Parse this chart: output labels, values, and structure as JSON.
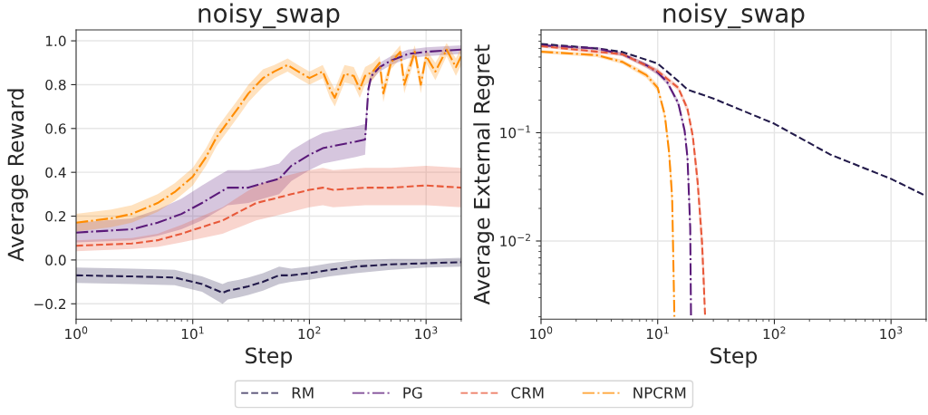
{
  "chart_data": [
    {
      "type": "line",
      "title": "noisy_swap",
      "xlabel": "Step",
      "ylabel": "Average Reward",
      "log": "x",
      "grid": true,
      "legend": "bottom",
      "xlim": [
        1,
        2000
      ],
      "xticks": [
        {
          "value": 1,
          "label": "10$^{0}$"
        },
        {
          "value": 10,
          "label": "10$^{1}$"
        },
        {
          "value": 100,
          "label": "10$^{2}$"
        },
        {
          "value": 1000,
          "label": "10$^{3}$"
        }
      ],
      "ylim": [
        -0.27,
        1.05
      ],
      "yticks": [
        {
          "value": -0.2,
          "label": "−0.2"
        },
        {
          "value": 0,
          "label": "0.0"
        },
        0.2,
        0.4,
        0.6,
        0.8,
        {
          "value": 1,
          "label": "1.0"
        }
      ],
      "series": [
        {
          "name": "RM",
          "color": "#231b4b",
          "line_style": "dashed",
          "x": [
            1,
            3,
            7,
            12,
            18,
            20,
            25,
            30,
            40,
            55,
            70,
            100,
            150,
            250,
            500,
            1000,
            2000
          ],
          "values": [
            -0.07,
            -0.075,
            -0.08,
            -0.11,
            -0.15,
            -0.14,
            -0.13,
            -0.12,
            -0.1,
            -0.07,
            -0.07,
            -0.06,
            -0.045,
            -0.03,
            -0.02,
            -0.015,
            -0.01
          ],
          "lower": [
            -0.105,
            -0.11,
            -0.115,
            -0.145,
            -0.2,
            -0.18,
            -0.17,
            -0.16,
            -0.14,
            -0.11,
            -0.1,
            -0.09,
            -0.075,
            -0.06,
            -0.045,
            -0.035,
            -0.03
          ],
          "upper": [
            -0.035,
            -0.04,
            -0.045,
            -0.075,
            -0.11,
            -0.1,
            -0.09,
            -0.08,
            -0.06,
            -0.03,
            -0.04,
            -0.03,
            -0.015,
            0.0,
            0.005,
            0.005,
            0.01
          ]
        },
        {
          "name": "PG",
          "color": "#5b1a7a",
          "line_style": "dashdot",
          "x": [
            1,
            3,
            5,
            8,
            12,
            16,
            20,
            30,
            40,
            55,
            70,
            100,
            130,
            200,
            250,
            300,
            320,
            340,
            400,
            500,
            700,
            1000,
            2000
          ],
          "values": [
            0.125,
            0.14,
            0.17,
            0.21,
            0.26,
            0.3,
            0.33,
            0.33,
            0.35,
            0.37,
            0.43,
            0.48,
            0.51,
            0.53,
            0.54,
            0.55,
            0.78,
            0.84,
            0.88,
            0.91,
            0.94,
            0.95,
            0.96
          ],
          "lower": [
            0.08,
            0.09,
            0.11,
            0.14,
            0.18,
            0.22,
            0.25,
            0.26,
            0.28,
            0.3,
            0.36,
            0.41,
            0.44,
            0.46,
            0.47,
            0.48,
            0.75,
            0.82,
            0.86,
            0.89,
            0.92,
            0.93,
            0.94
          ],
          "upper": [
            0.17,
            0.19,
            0.23,
            0.28,
            0.34,
            0.38,
            0.41,
            0.41,
            0.42,
            0.44,
            0.5,
            0.55,
            0.58,
            0.6,
            0.61,
            0.62,
            0.81,
            0.86,
            0.9,
            0.93,
            0.96,
            0.97,
            0.98
          ]
        },
        {
          "name": "CRM",
          "color": "#e8593a",
          "line_style": "dashed",
          "x": [
            1,
            3,
            5,
            8,
            12,
            18,
            25,
            35,
            50,
            70,
            100,
            130,
            160,
            300,
            500,
            1000,
            2000
          ],
          "values": [
            0.065,
            0.075,
            0.09,
            0.12,
            0.15,
            0.18,
            0.22,
            0.26,
            0.28,
            0.3,
            0.32,
            0.33,
            0.32,
            0.33,
            0.33,
            0.34,
            0.33
          ],
          "lower": [
            0.04,
            0.05,
            0.06,
            0.08,
            0.1,
            0.12,
            0.15,
            0.18,
            0.2,
            0.22,
            0.24,
            0.25,
            0.24,
            0.25,
            0.25,
            0.25,
            0.24
          ],
          "upper": [
            0.09,
            0.1,
            0.12,
            0.16,
            0.2,
            0.24,
            0.29,
            0.34,
            0.37,
            0.39,
            0.41,
            0.42,
            0.41,
            0.42,
            0.42,
            0.43,
            0.42
          ]
        },
        {
          "name": "NPCRM",
          "color": "#ff8c00",
          "line_style": "dashdot",
          "x": [
            1,
            2,
            3,
            5,
            7,
            10,
            13,
            16,
            20,
            25,
            30,
            40,
            50,
            65,
            80,
            100,
            130,
            150,
            165,
            200,
            240,
            270,
            300,
            350,
            400,
            430,
            500,
            600,
            650,
            800,
            900,
            1000,
            1200,
            1500,
            1800,
            2000
          ],
          "values": [
            0.17,
            0.19,
            0.21,
            0.26,
            0.31,
            0.38,
            0.47,
            0.56,
            0.63,
            0.7,
            0.76,
            0.83,
            0.86,
            0.89,
            0.86,
            0.83,
            0.86,
            0.78,
            0.74,
            0.85,
            0.84,
            0.78,
            0.84,
            0.86,
            0.9,
            0.76,
            0.9,
            0.95,
            0.8,
            0.95,
            0.8,
            0.93,
            0.86,
            0.96,
            0.88,
            0.93
          ],
          "lower": [
            0.13,
            0.15,
            0.17,
            0.22,
            0.27,
            0.34,
            0.43,
            0.52,
            0.59,
            0.66,
            0.72,
            0.79,
            0.83,
            0.86,
            0.83,
            0.8,
            0.83,
            0.74,
            0.7,
            0.81,
            0.8,
            0.74,
            0.8,
            0.82,
            0.87,
            0.72,
            0.87,
            0.92,
            0.76,
            0.92,
            0.76,
            0.9,
            0.82,
            0.93,
            0.84,
            0.89
          ],
          "upper": [
            0.21,
            0.23,
            0.25,
            0.3,
            0.35,
            0.42,
            0.51,
            0.6,
            0.67,
            0.74,
            0.8,
            0.87,
            0.89,
            0.92,
            0.89,
            0.86,
            0.89,
            0.82,
            0.78,
            0.89,
            0.88,
            0.82,
            0.88,
            0.9,
            0.93,
            0.8,
            0.93,
            0.98,
            0.84,
            0.98,
            0.84,
            0.96,
            0.9,
            0.99,
            0.92,
            0.97
          ]
        }
      ]
    },
    {
      "type": "line",
      "title": "noisy_swap",
      "xlabel": "Step",
      "ylabel": "Average External Regret",
      "log": "xy",
      "grid": true,
      "xlim": [
        1,
        2000
      ],
      "xticks": [
        {
          "value": 1,
          "label": "10$^{0}$"
        },
        {
          "value": 10,
          "label": "10$^{1}$"
        },
        {
          "value": 100,
          "label": "10$^{2}$"
        },
        {
          "value": 1000,
          "label": "10$^{3}$"
        }
      ],
      "ylim": [
        0.0019,
        0.89
      ],
      "yticks": [
        {
          "value": 0.01,
          "label": "10$^{−2}$"
        },
        {
          "value": 0.1,
          "label": "10$^{−1}$"
        }
      ],
      "series": [
        {
          "color": "#231b4b",
          "line_style": "dashed",
          "x": [
            1,
            3,
            5,
            10,
            15,
            18,
            30,
            100,
            300,
            1000,
            2000
          ],
          "values": [
            0.66,
            0.6,
            0.556,
            0.435,
            0.3,
            0.25,
            0.207,
            0.121,
            0.063,
            0.0375,
            0.026
          ]
        },
        {
          "color": "#5b1a7a",
          "line_style": "dashdot",
          "x": [
            1,
            3,
            5,
            8,
            10,
            12,
            15,
            17,
            18,
            19,
            19.3
          ],
          "values": [
            0.64,
            0.6,
            0.53,
            0.42,
            0.36,
            0.296,
            0.188,
            0.105,
            0.059,
            0.0134,
            0.002
          ],
          "lower": [
            0.62,
            0.58,
            0.51,
            0.4,
            0.34,
            0.28,
            0.175,
            0.095,
            0.05,
            0.009,
            0.0019
          ],
          "upper": [
            0.66,
            0.62,
            0.55,
            0.44,
            0.38,
            0.31,
            0.2,
            0.115,
            0.07,
            0.02,
            0.004
          ]
        },
        {
          "color": "#e8593a",
          "line_style": "dashed",
          "x": [
            1,
            5,
            10,
            15,
            18,
            20,
            22,
            24,
            25.5
          ],
          "values": [
            0.63,
            0.53,
            0.37,
            0.26,
            0.166,
            0.093,
            0.035,
            0.0097,
            0.002
          ],
          "lower": [
            0.61,
            0.51,
            0.35,
            0.245,
            0.15,
            0.08,
            0.027,
            0.006,
            0.0019
          ],
          "upper": [
            0.65,
            0.55,
            0.39,
            0.275,
            0.18,
            0.105,
            0.045,
            0.014,
            0.004
          ]
        },
        {
          "color": "#ff8c00",
          "line_style": "dashdot",
          "x": [
            1,
            3,
            5,
            8,
            10,
            11.5,
            12.5,
            13.3,
            13.9
          ],
          "values": [
            0.56,
            0.52,
            0.45,
            0.34,
            0.26,
            0.146,
            0.067,
            0.0255,
            0.002
          ],
          "lower": [
            0.54,
            0.5,
            0.43,
            0.32,
            0.24,
            0.13,
            0.055,
            0.018,
            0.0019
          ],
          "upper": [
            0.58,
            0.54,
            0.47,
            0.36,
            0.28,
            0.16,
            0.08,
            0.035,
            0.004
          ]
        }
      ]
    }
  ]
}
